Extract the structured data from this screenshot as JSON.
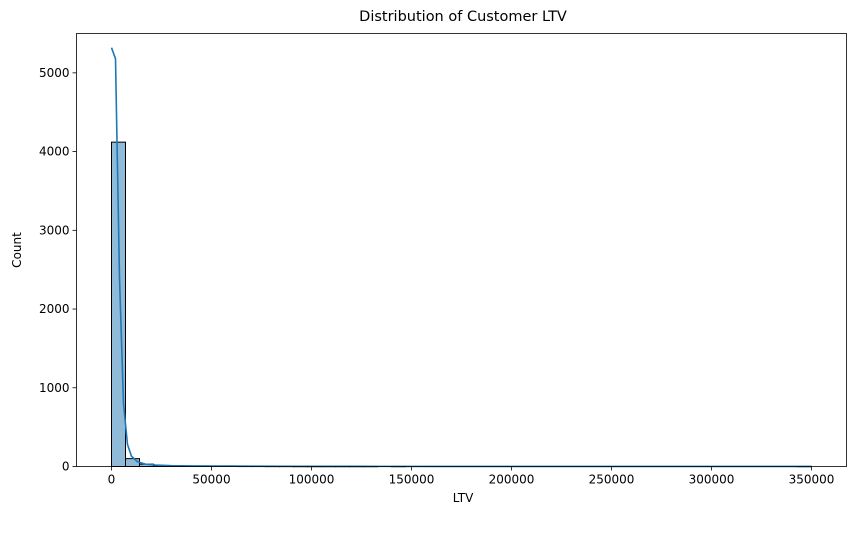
{
  "chart_data": {
    "type": "histogram",
    "title": "Distribution of Customer LTV",
    "xlabel": "LTV",
    "ylabel": "Count",
    "xlim": [
      -17500,
      367500
    ],
    "ylim": [
      0,
      5500
    ],
    "xticks": [
      0,
      50000,
      100000,
      150000,
      200000,
      250000,
      300000,
      350000
    ],
    "xtick_labels": [
      "0",
      "50000",
      "100000",
      "150000",
      "200000",
      "250000",
      "300000",
      "350000"
    ],
    "yticks": [
      0,
      1000,
      2000,
      3000,
      4000,
      5000
    ],
    "ytick_labels": [
      "0",
      "1000",
      "2000",
      "3000",
      "4000",
      "5000"
    ],
    "grid": false,
    "bin_width": 7000,
    "bin_start": 0,
    "counts": [
      4120,
      100,
      30,
      12,
      8,
      6,
      5,
      4,
      7,
      3,
      3,
      2,
      2,
      1,
      1,
      1,
      1,
      1,
      1,
      0,
      1,
      0,
      0,
      0,
      0,
      0,
      0,
      0,
      0,
      0,
      0,
      0,
      0,
      0,
      0,
      0,
      0,
      0,
      0,
      0,
      0,
      0,
      0,
      0,
      0,
      0,
      0,
      0,
      0,
      1
    ],
    "kde": {
      "x": [
        0,
        2000,
        4000,
        6000,
        8000,
        10000,
        13000,
        17000,
        22000,
        30000,
        40000,
        55000,
        70000,
        90000,
        120000,
        160000,
        200000,
        250000,
        300000,
        350000
      ],
      "y": [
        5320,
        5180,
        2400,
        800,
        280,
        130,
        60,
        30,
        18,
        10,
        7,
        5,
        4,
        3,
        2,
        1,
        1,
        0.5,
        0.5,
        0.5
      ]
    },
    "bar_color": "#1f77b4",
    "bar_fill_opacity": 0.5,
    "line_color": "#1f77b4"
  }
}
